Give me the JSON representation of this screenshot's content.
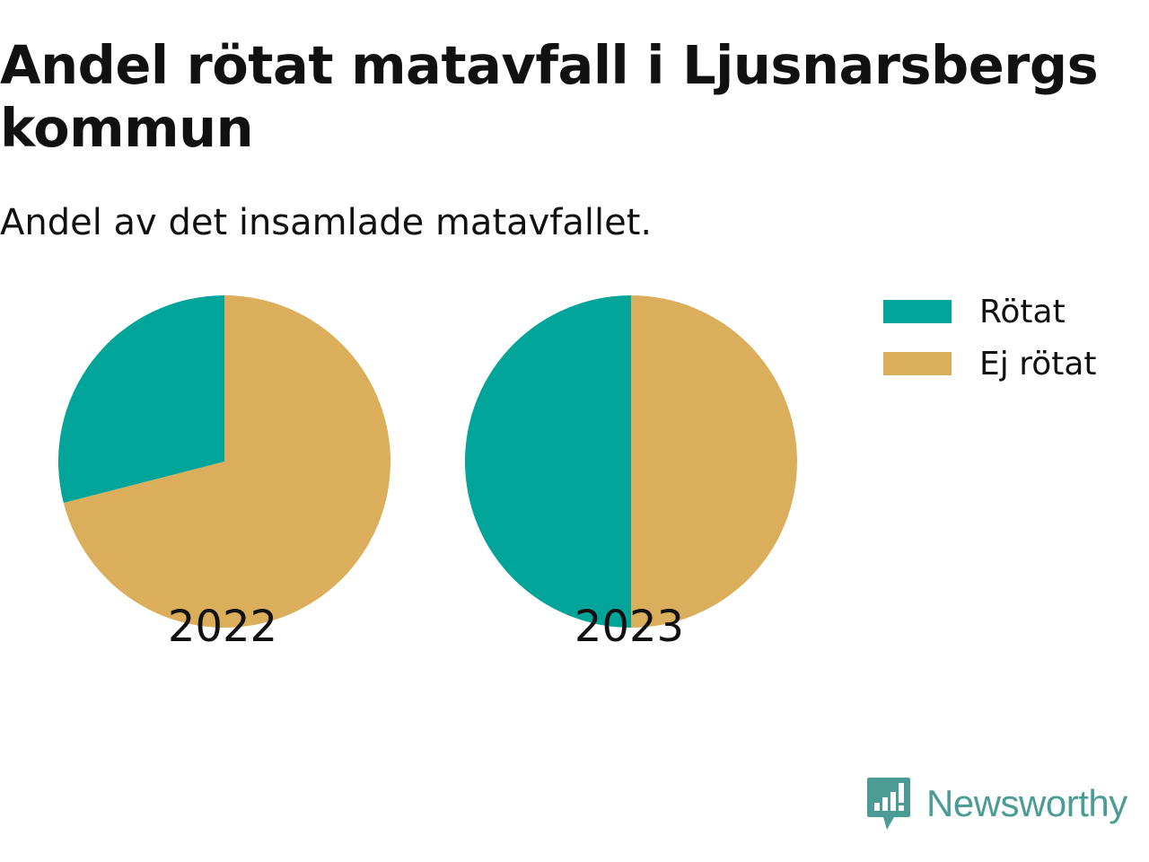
{
  "header": {
    "title": "Andel rötat matavfall i Ljusnarsbergs kommun",
    "subtitle": "Andel av det insamlade matavfallet."
  },
  "colors": {
    "rotat": "#00a499",
    "ej_rotat": "#dbae5c",
    "brand": "#4a9c94"
  },
  "brand": {
    "name": "Newsworthy"
  },
  "chart_data": {
    "type": "pie",
    "title": "Andel rötat matavfall i Ljusnarsbergs kommun",
    "subtitle": "Andel av det insamlade matavfallet.",
    "legend": [
      "Rötat",
      "Ej rötat"
    ],
    "legend_position": "top-right",
    "charts": [
      {
        "label": "2022",
        "slices": [
          {
            "name": "Rötat",
            "value": 29
          },
          {
            "name": "Ej rötat",
            "value": 71
          }
        ]
      },
      {
        "label": "2023",
        "slices": [
          {
            "name": "Rötat",
            "value": 50
          },
          {
            "name": "Ej rötat",
            "value": 50
          }
        ]
      }
    ]
  }
}
